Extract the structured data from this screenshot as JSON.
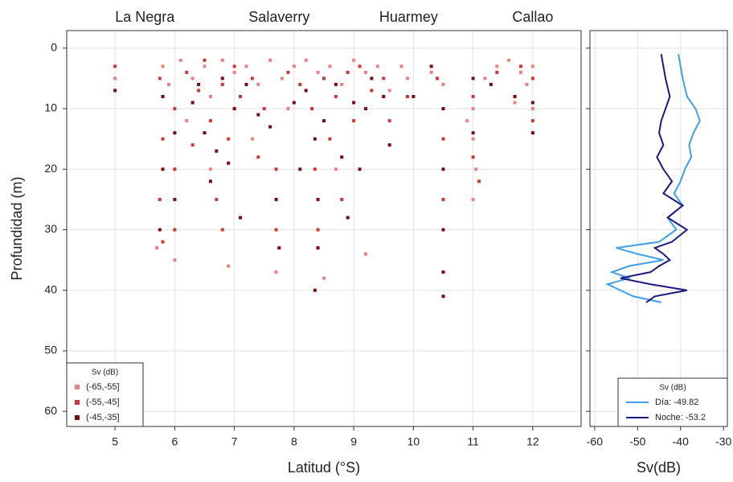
{
  "chart_data": [
    {
      "type": "scatter",
      "xlabel": "Latitud (°S)",
      "ylabel": "Profundidad (m)",
      "xlim": [
        4.19,
        12.81
      ],
      "xticks": [
        5,
        6,
        7,
        8,
        9,
        10,
        11,
        12
      ],
      "ylim": [
        -2.9,
        62.5
      ],
      "yticks": [
        0,
        10,
        20,
        30,
        40,
        50,
        60
      ],
      "y_inverted": true,
      "grid": true,
      "annotations": [
        {
          "text": "La Negra",
          "x": 5.5
        },
        {
          "text": "Salaverry",
          "x": 7.75
        },
        {
          "text": "Huarmey",
          "x": 9.92
        },
        {
          "text": "Callao",
          "x": 12.0
        }
      ],
      "legend_title": "Sv (dB)",
      "legend": "lower left",
      "series": [
        {
          "name": "(-65,-55]",
          "color": "#ee8080",
          "x": [
            5.8,
            5.9,
            6.1,
            6.3,
            6.5,
            6.6,
            6.8,
            7.0,
            7.2,
            7.4,
            7.6,
            7.8,
            8.0,
            8.2,
            8.4,
            8.6,
            8.8,
            9.0,
            9.2,
            9.4,
            9.6,
            9.9,
            10.3,
            10.5,
            11.0,
            11.0,
            11.05,
            11.2,
            11.4,
            11.6,
            11.8,
            12.0,
            11.9,
            6.0,
            6.9,
            5.7,
            7.7,
            8.5,
            9.2,
            6.6,
            7.3,
            8.7,
            11.0,
            10.9,
            12.0,
            11.7,
            6.2,
            7.9,
            9.8,
            5.0
          ],
          "values": [
            3,
            6,
            2,
            5,
            3,
            8,
            2,
            4,
            3,
            6,
            2,
            5,
            3,
            2,
            4,
            3,
            6,
            2,
            4,
            3,
            7,
            5,
            4,
            6,
            10,
            15,
            20,
            5,
            3,
            2,
            4,
            3,
            6,
            35,
            36,
            33,
            37,
            38,
            34,
            20,
            15,
            20,
            25,
            12,
            10,
            9,
            12,
            10,
            3,
            5
          ]
        },
        {
          "name": "(-55,-45]",
          "color": "#cc3838",
          "x": [
            5.0,
            5.75,
            5.8,
            5.75,
            5.8,
            6.0,
            6.0,
            6.0,
            6.2,
            6.4,
            6.5,
            6.6,
            6.7,
            6.8,
            6.9,
            7.0,
            7.1,
            7.3,
            7.5,
            7.7,
            7.7,
            7.9,
            8.1,
            8.3,
            8.35,
            8.4,
            8.5,
            8.7,
            8.8,
            8.9,
            9.0,
            9.1,
            9.3,
            9.5,
            9.6,
            9.9,
            10.4,
            10.5,
            10.5,
            11.0,
            11.0,
            11.1,
            11.4,
            11.8,
            12.0,
            12.0,
            6.3,
            7.4,
            8.6,
            6.8
          ],
          "values": [
            3,
            5,
            15,
            25,
            32,
            10,
            20,
            30,
            4,
            7,
            2,
            12,
            25,
            6,
            15,
            3,
            8,
            5,
            10,
            20,
            30,
            4,
            6,
            10,
            20,
            30,
            5,
            8,
            25,
            4,
            12,
            3,
            7,
            5,
            12,
            8,
            5,
            15,
            25,
            8,
            18,
            22,
            4,
            3,
            5,
            12,
            16,
            18,
            15,
            30
          ]
        },
        {
          "name": "(-45,-35]",
          "color": "#7a0a14",
          "x": [
            5.0,
            5.8,
            5.8,
            5.75,
            6.0,
            6.0,
            6.3,
            6.5,
            6.6,
            6.8,
            6.9,
            7.0,
            7.2,
            7.4,
            7.6,
            7.7,
            7.75,
            8.0,
            8.2,
            8.35,
            8.4,
            8.4,
            8.35,
            8.5,
            8.7,
            8.8,
            8.9,
            9.0,
            9.2,
            9.3,
            9.5,
            9.6,
            10.0,
            10.3,
            10.5,
            10.5,
            10.5,
            10.5,
            10.5,
            11.0,
            11.0,
            11.3,
            11.7,
            12.0,
            12.0,
            6.4,
            7.1,
            8.1,
            9.1,
            6.7
          ],
          "values": [
            7,
            8,
            20,
            30,
            14,
            25,
            9,
            14,
            22,
            5,
            19,
            10,
            6,
            11,
            13,
            25,
            33,
            9,
            7,
            15,
            25,
            33,
            40,
            12,
            6,
            18,
            28,
            9,
            10,
            5,
            8,
            16,
            8,
            3,
            10,
            20,
            30,
            37,
            41,
            5,
            14,
            6,
            8,
            9,
            14,
            6,
            28,
            20,
            20,
            17
          ]
        }
      ]
    },
    {
      "type": "line",
      "xlabel": "Sv(dB)",
      "xlim": [
        -61.1,
        -29.1
      ],
      "xticks": [
        -60,
        -50,
        -40,
        -30
      ],
      "ylim": [
        -2.9,
        62.5
      ],
      "yticks": [
        0,
        10,
        20,
        30,
        40,
        50,
        60
      ],
      "y_inverted": true,
      "grid": true,
      "legend_title": "Sv (dB)",
      "legend": "lower right",
      "y": [
        1,
        3,
        5,
        8,
        10,
        12,
        14,
        16,
        18,
        20,
        22,
        24,
        26,
        28,
        30,
        32,
        33,
        34,
        35,
        36,
        37,
        38,
        39,
        40,
        41,
        42
      ],
      "series": [
        {
          "name": "Día: -49.82",
          "color": "#3ea0e8",
          "values": [
            -40.5,
            -40,
            -39.5,
            -38.5,
            -36.5,
            -35.5,
            -37,
            -38,
            -37.5,
            -39,
            -40,
            -41.5,
            -39.5,
            -43,
            -41,
            -45,
            -55,
            -50,
            -44,
            -52,
            -56,
            -52,
            -57,
            -54,
            -51,
            -44.5
          ]
        },
        {
          "name": "Noche: -53.2",
          "color": "#1a1a80",
          "values": [
            -44.5,
            -44,
            -43.5,
            -42.5,
            -43.5,
            -44.5,
            -45,
            -44,
            -45.5,
            -44,
            -42,
            -44,
            -39.5,
            -43,
            -38.5,
            -42,
            -46,
            -44,
            -42.5,
            -45,
            -47,
            -54,
            -47,
            -38.5,
            -46,
            -48
          ]
        }
      ]
    }
  ]
}
